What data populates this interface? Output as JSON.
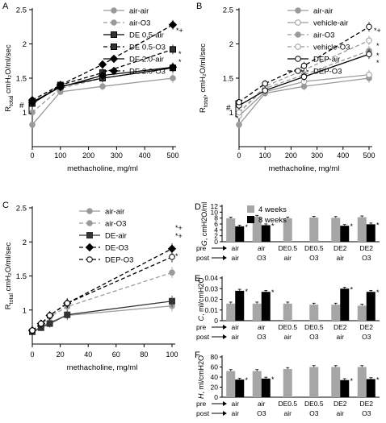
{
  "chart_data": [
    {
      "panel": "A",
      "type": "line",
      "xlabel": "methacholine, mg/ml",
      "ylabel": "R_total cmH2O/ml/sec",
      "x": [
        0,
        100,
        250,
        500
      ],
      "xticks": [
        0,
        100,
        200,
        300,
        400,
        500
      ],
      "xlim": [
        0,
        500
      ],
      "ylim": [
        0.5,
        2.5
      ],
      "yticks": [
        1,
        1.5,
        2,
        2.5
      ],
      "series": [
        {
          "name": "air-air",
          "values": [
            0.82,
            1.3,
            1.38,
            1.5
          ],
          "color": "#9a9a9a",
          "dash": "",
          "marker": "circle",
          "fill": "#9a9a9a"
        },
        {
          "name": "air-O3",
          "values": [
            1.0,
            1.35,
            1.5,
            1.65
          ],
          "color": "#9a9a9a",
          "dash": "5,3",
          "marker": "circle",
          "fill": "#9a9a9a"
        },
        {
          "name": "DE 0.5-air",
          "values": [
            1.13,
            1.38,
            1.5,
            1.65
          ],
          "color": "#000000",
          "dash": "",
          "marker": "square",
          "fill": "#333333"
        },
        {
          "name": "DE 0.5-O3",
          "values": [
            1.13,
            1.4,
            1.58,
            1.92
          ],
          "color": "#000000",
          "dash": "5,3",
          "marker": "square",
          "fill": "#333333"
        },
        {
          "name": "DE 2.0-air",
          "values": [
            1.15,
            1.37,
            1.54,
            1.66
          ],
          "color": "#000000",
          "dash": "",
          "marker": "diamond",
          "fill": "#000000"
        },
        {
          "name": "DE 2.0-O3",
          "values": [
            1.18,
            1.4,
            1.7,
            2.28
          ],
          "color": "#000000",
          "dash": "5,3",
          "marker": "diamond",
          "fill": "#000000"
        }
      ],
      "annotations": [
        "*+",
        "*",
        "*",
        "#"
      ]
    },
    {
      "panel": "B",
      "type": "line",
      "xlabel": "methacholine, mg/ml",
      "ylabel": "R_total, cmH2O/ml/sec",
      "x": [
        0,
        100,
        250,
        500
      ],
      "xticks": [
        0,
        100,
        200,
        300,
        400,
        500
      ],
      "xlim": [
        0,
        500
      ],
      "ylim": [
        0.5,
        2.5
      ],
      "yticks": [
        1,
        1.5,
        2,
        2.5
      ],
      "series": [
        {
          "name": "air-air",
          "values": [
            0.82,
            1.28,
            1.38,
            1.5
          ],
          "color": "#9a9a9a",
          "dash": "",
          "marker": "circle",
          "fill": "#9a9a9a"
        },
        {
          "name": "vehicle-air",
          "values": [
            0.95,
            1.3,
            1.45,
            1.55
          ],
          "color": "#9a9a9a",
          "dash": "",
          "marker": "circle",
          "fill": "#ffffff"
        },
        {
          "name": "air-O3",
          "values": [
            1.0,
            1.35,
            1.55,
            1.9
          ],
          "color": "#9a9a9a",
          "dash": "5,3",
          "marker": "circle",
          "fill": "#9a9a9a"
        },
        {
          "name": "vehicle-O3",
          "values": [
            1.0,
            1.38,
            1.62,
            2.05
          ],
          "color": "#9a9a9a",
          "dash": "5,3",
          "marker": "circle",
          "fill": "#ffffff"
        },
        {
          "name": "DEP-air",
          "values": [
            1.1,
            1.32,
            1.52,
            1.85
          ],
          "color": "#000000",
          "dash": "",
          "marker": "circle",
          "fill": "#ffffff"
        },
        {
          "name": "DEP-O3",
          "values": [
            1.15,
            1.42,
            1.68,
            2.25
          ],
          "color": "#000000",
          "dash": "5,3",
          "marker": "circle",
          "fill": "#ffffff"
        }
      ],
      "annotations": [
        "*+",
        "*",
        "*",
        "*",
        "#"
      ]
    },
    {
      "panel": "C",
      "type": "line",
      "xlabel": "methacholine, mg/ml",
      "ylabel": "R_total cmH2O/ml/sec",
      "x": [
        0,
        6.25,
        12.5,
        25,
        100
      ],
      "xticks": [
        0,
        20,
        40,
        60,
        80,
        100
      ],
      "xlim": [
        0,
        100
      ],
      "ylim": [
        0.5,
        2.5
      ],
      "yticks": [
        1,
        1.5,
        2,
        2.5
      ],
      "series": [
        {
          "name": "air-air",
          "values": [
            0.68,
            0.75,
            0.82,
            0.92,
            1.06
          ],
          "color": "#9a9a9a",
          "dash": "",
          "marker": "circle",
          "fill": "#9a9a9a"
        },
        {
          "name": "air-O3",
          "values": [
            0.7,
            0.78,
            0.9,
            1.05,
            1.55
          ],
          "color": "#9a9a9a",
          "dash": "5,3",
          "marker": "circle",
          "fill": "#9a9a9a"
        },
        {
          "name": "DE-air",
          "values": [
            0.68,
            0.74,
            0.8,
            0.93,
            1.13
          ],
          "color": "#333333",
          "dash": "",
          "marker": "square",
          "fill": "#333333"
        },
        {
          "name": "DE-O3",
          "values": [
            0.7,
            0.8,
            0.92,
            1.1,
            1.9
          ],
          "color": "#000000",
          "dash": "5,3",
          "marker": "diamond",
          "fill": "#000000"
        },
        {
          "name": "DEP-O3",
          "values": [
            0.7,
            0.8,
            0.92,
            1.1,
            1.78
          ],
          "color": "#000000",
          "dash": "5,3",
          "marker": "circle",
          "fill": "#ffffff"
        }
      ],
      "annotations": [
        "*+",
        "*+",
        "*"
      ]
    },
    {
      "panel": "D",
      "type": "bar",
      "ylabel": "G, cmH2O/ml",
      "ylim": [
        0,
        12
      ],
      "yticks": [
        "0",
        "2",
        "4",
        "6",
        "8",
        "10",
        "12"
      ],
      "legend": [
        "4 weeks",
        "8 weeks"
      ],
      "series": [
        {
          "name": "4 weeks",
          "values": [
            7.9,
            8.5,
            7.9,
            8.2,
            8.1,
            8.3
          ],
          "color": "#a6a6a6"
        },
        {
          "name": "8 weeks",
          "values": [
            5.2,
            5.6,
            null,
            null,
            5.4,
            5.9
          ],
          "color": "#000000"
        }
      ],
      "stars": [
        "*",
        "*",
        "",
        "",
        "*",
        "*"
      ]
    },
    {
      "panel": "E",
      "type": "bar",
      "ylabel": "C, ml/cmH2O",
      "ylim": [
        0,
        0.04
      ],
      "yticks": [
        "0",
        "0.01",
        "0.02",
        "0.03",
        "0.04"
      ],
      "series": [
        {
          "name": "4 weeks",
          "values": [
            0.016,
            0.016,
            0.016,
            0.015,
            0.015,
            0.014
          ],
          "color": "#a6a6a6"
        },
        {
          "name": "8 weeks",
          "values": [
            0.028,
            0.027,
            null,
            null,
            0.03,
            0.027
          ],
          "color": "#000000"
        }
      ],
      "stars": [
        "*",
        "*",
        "",
        "",
        "*",
        "*"
      ]
    },
    {
      "panel": "F",
      "type": "bar",
      "ylabel": "H, ml/cmH2O",
      "ylim": [
        0,
        80
      ],
      "yticks": [
        "0",
        "20",
        "40",
        "60",
        "80"
      ],
      "series": [
        {
          "name": "4 weeks",
          "values": [
            52,
            52,
            56,
            60,
            60,
            60
          ],
          "color": "#a6a6a6"
        },
        {
          "name": "8 weeks",
          "values": [
            35,
            37,
            null,
            null,
            34,
            36
          ],
          "color": "#000000"
        }
      ],
      "stars": [
        "*",
        "*",
        "",
        "",
        "*",
        "*"
      ]
    }
  ],
  "bar_groups": {
    "pre_label": "pre",
    "post_label": "post",
    "pre": [
      "air",
      "air",
      "DE0.5",
      "DE0.5",
      "DE2",
      "DE2"
    ],
    "post": [
      "air",
      "O3",
      "air",
      "O3",
      "air",
      "O3"
    ]
  }
}
